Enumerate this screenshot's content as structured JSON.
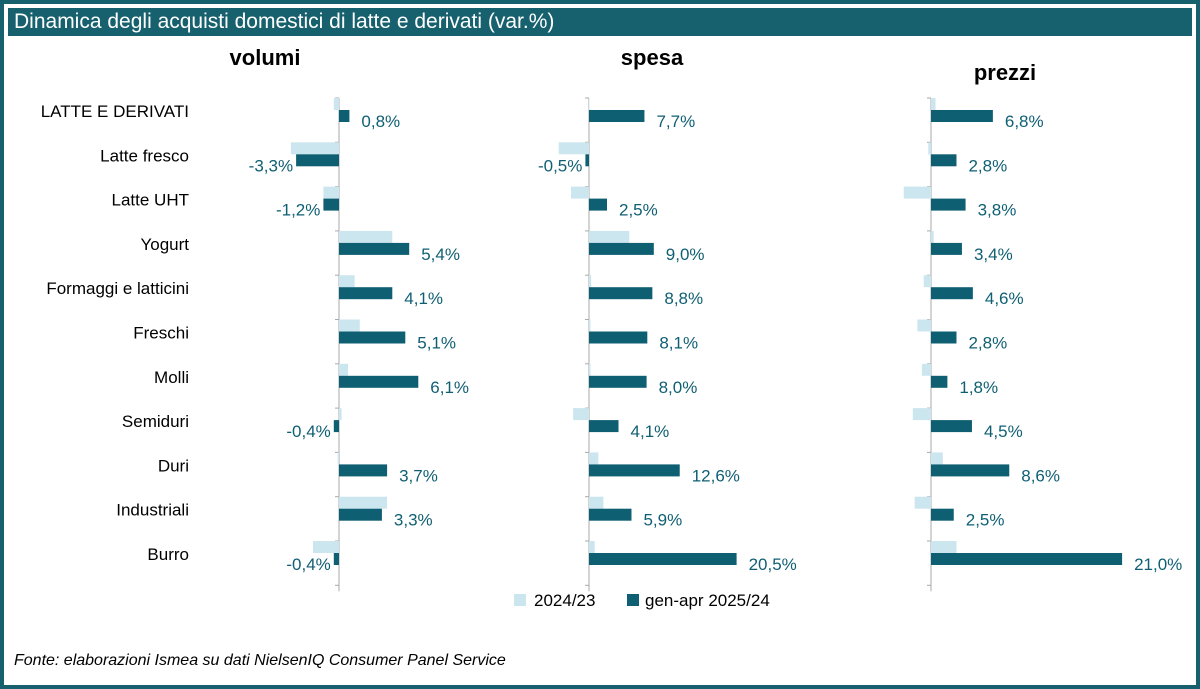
{
  "title": "Dinamica degli acquisti domestici di latte e derivati (var.%)",
  "source": "Fonte: elaborazioni Ismea su dati NielsenIQ Consumer Panel Service",
  "colors": {
    "frame": "#17606e",
    "series_prev": "#cce6ef",
    "series_curr": "#0f5f73",
    "label": "#0f5f73"
  },
  "chart_data": {
    "type": "bar",
    "orientation": "horizontal",
    "categories": [
      "LATTE E DERIVATI",
      "Latte fresco",
      "Latte UHT",
      "Yogurt",
      "Formaggi e latticini",
      "Freschi",
      "Molli",
      "Semiduri",
      "Duri",
      "Industriali",
      "Burro"
    ],
    "legend": [
      "2024/23",
      "gen-apr 2025/24"
    ],
    "legend_position": "bottom",
    "panels": [
      {
        "title": "volumi",
        "series": [
          {
            "name": "2024/23",
            "values": [
              -0.4,
              -3.7,
              -1.2,
              4.1,
              1.2,
              1.6,
              0.7,
              0.2,
              -0.1,
              3.7,
              -2.0
            ]
          },
          {
            "name": "gen-apr 2025/24",
            "values": [
              0.8,
              -3.3,
              -1.2,
              5.4,
              4.1,
              5.1,
              6.1,
              -0.4,
              3.7,
              3.3,
              -0.4
            ]
          }
        ],
        "labels": [
          "0,8%",
          "-3,3%",
          "-1,2%",
          "5,4%",
          "4,1%",
          "5,1%",
          "6,1%",
          "-0,4%",
          "3,7%",
          "3,3%",
          "-0,4%"
        ]
      },
      {
        "title": "spesa",
        "series": [
          {
            "name": "2024/23",
            "values": [
              0.0,
              -4.2,
              -2.5,
              5.6,
              0.3,
              0.2,
              0.2,
              -2.2,
              1.3,
              2.0,
              0.8
            ]
          },
          {
            "name": "gen-apr 2025/24",
            "values": [
              7.7,
              -0.5,
              2.5,
              9.0,
              8.8,
              8.1,
              8.0,
              4.1,
              12.6,
              5.9,
              20.5
            ]
          }
        ],
        "labels": [
          "7,7%",
          "-0,5%",
          "2,5%",
          "9,0%",
          "8,8%",
          "8,1%",
          "8,0%",
          "4,1%",
          "12,6%",
          "5,9%",
          "20,5%"
        ]
      },
      {
        "title": "prezzi",
        "series": [
          {
            "name": "2024/23",
            "values": [
              0.5,
              -0.3,
              -3.0,
              0.3,
              -0.8,
              -1.5,
              -1.0,
              -2.0,
              1.3,
              -1.8,
              2.8
            ]
          },
          {
            "name": "gen-apr 2025/24",
            "values": [
              6.8,
              2.8,
              3.8,
              3.4,
              4.6,
              2.8,
              1.8,
              4.5,
              8.6,
              2.5,
              21.0
            ]
          }
        ],
        "labels": [
          "6,8%",
          "2,8%",
          "3,8%",
          "3,4%",
          "4,6%",
          "2,8%",
          "1,8%",
          "4,5%",
          "8,6%",
          "2,5%",
          "21,0%"
        ]
      }
    ]
  }
}
